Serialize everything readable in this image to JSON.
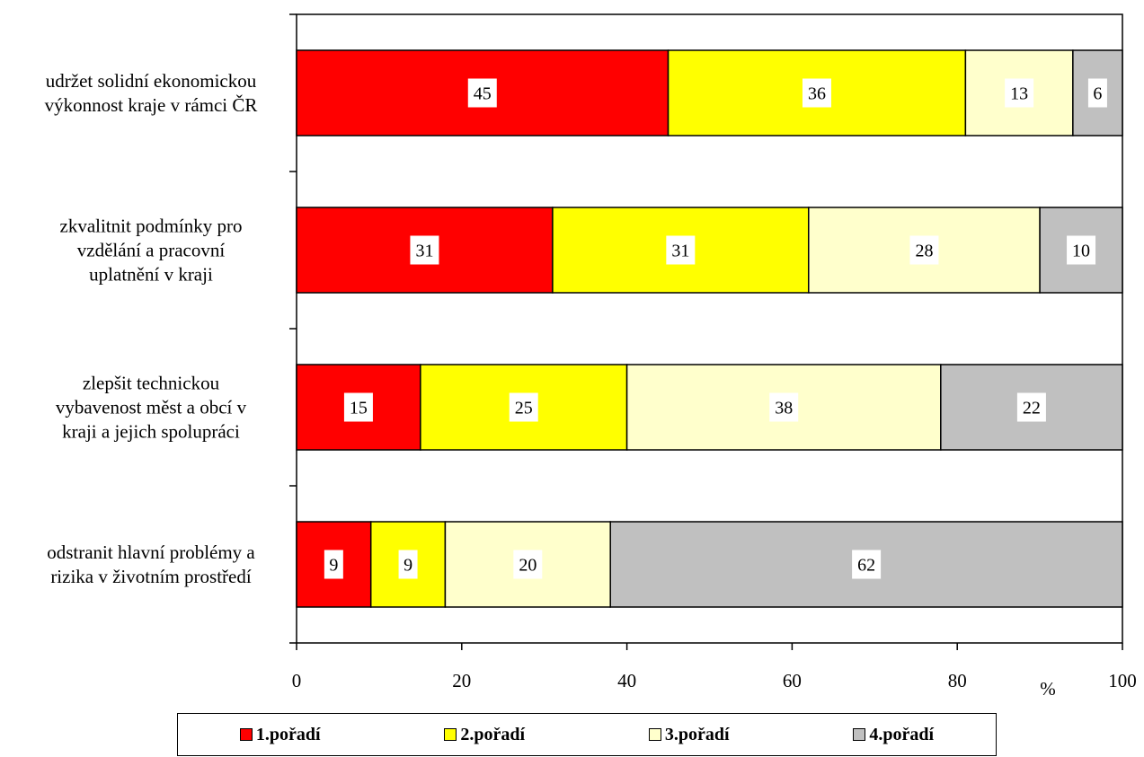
{
  "chart_data": {
    "type": "bar",
    "orientation": "horizontal",
    "stacked": true,
    "categories": [
      [
        "udržet solidní ekonomickou",
        "výkonnost kraje v rámci ČR"
      ],
      [
        "zkvalitnit podmínky pro",
        "vzdělání a pracovní",
        "uplatnění v kraji"
      ],
      [
        "zlepšit technickou",
        "vybavenost měst a obcí v",
        "kraji a jejich spolupráci"
      ],
      [
        "odstranit hlavní problémy a",
        "rizika v životním prostředí"
      ]
    ],
    "series": [
      {
        "name": "1.pořadí",
        "color": "#ff0000",
        "values": [
          45,
          31,
          15,
          9
        ]
      },
      {
        "name": "2.pořadí",
        "color": "#ffff00",
        "values": [
          36,
          31,
          25,
          9
        ]
      },
      {
        "name": "3.pořadí",
        "color": "#ffffcc",
        "values": [
          13,
          28,
          38,
          20
        ]
      },
      {
        "name": "4.pořadí",
        "color": "#c0c0c0",
        "values": [
          6,
          10,
          22,
          62
        ]
      }
    ],
    "xlim": [
      0,
      100
    ],
    "xticks": [
      "0",
      "20",
      "40",
      "60",
      "80",
      "100"
    ],
    "xunit": "%",
    "grid": false,
    "legend_position": "bottom"
  }
}
